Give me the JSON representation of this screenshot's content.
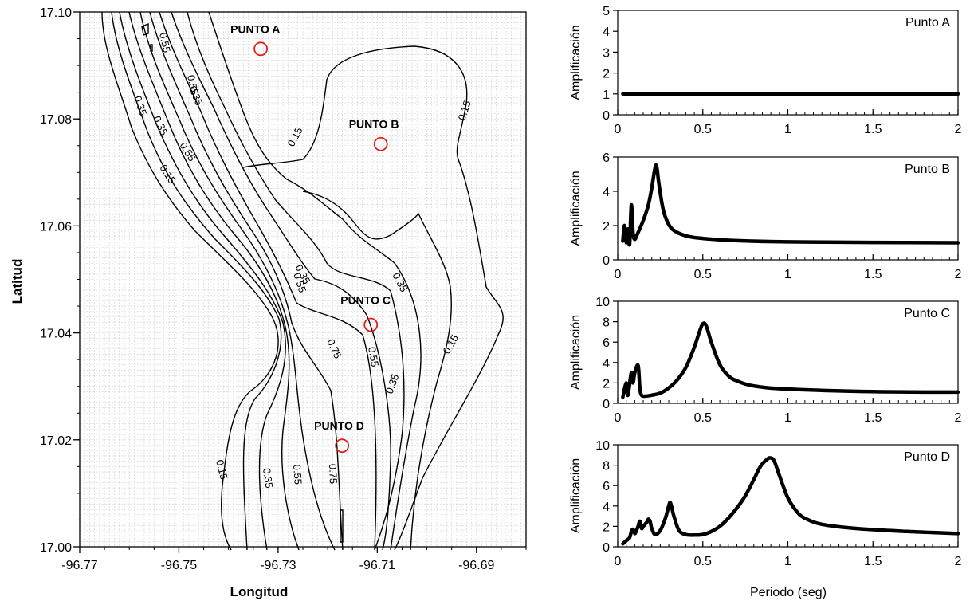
{
  "chart_data": [
    {
      "type": "contour",
      "xlabel": "Longitud",
      "ylabel": "Latitud",
      "xlim": [
        -96.77,
        -96.68
      ],
      "ylim": [
        17.0,
        17.1
      ],
      "xticks": [
        "-96.77",
        "-96.75",
        "-96.73",
        "-96.71",
        "-96.69"
      ],
      "yticks": [
        "17.00",
        "17.02",
        "17.04",
        "17.06",
        "17.08",
        "17.10"
      ],
      "grid": true,
      "points": [
        {
          "label": "PUNTO A",
          "lon": -96.7335,
          "lat": 17.0931
        },
        {
          "label": "PUNTO B",
          "lon": -96.7093,
          "lat": 17.0753
        },
        {
          "label": "PUNTO C",
          "lon": -96.7113,
          "lat": 17.0415
        },
        {
          "label": "PUNTO D",
          "lon": -96.7171,
          "lat": 17.0189
        }
      ],
      "contour_labels": [
        "0.15",
        "0.35",
        "0.55",
        "0.75"
      ]
    },
    {
      "type": "line",
      "title": "Punto A",
      "xlabel": "",
      "ylabel": "Amplificación",
      "xlim": [
        0,
        2
      ],
      "ylim": [
        0,
        5
      ],
      "xticks": [
        "0",
        "0.5",
        "1",
        "1.5",
        "2"
      ],
      "yticks": [
        "0",
        "1",
        "2",
        "3",
        "4",
        "5"
      ],
      "x": [
        0.03,
        0.5,
        1.0,
        1.5,
        2.0
      ],
      "y": [
        1.0,
        1.0,
        1.0,
        1.0,
        1.0
      ]
    },
    {
      "type": "line",
      "title": "Punto B",
      "xlabel": "",
      "ylabel": "Amplificación",
      "xlim": [
        0,
        2
      ],
      "ylim": [
        0,
        6
      ],
      "xticks": [
        "0",
        "0.5",
        "1",
        "1.5",
        "2"
      ],
      "yticks": [
        "0",
        "2",
        "4",
        "6"
      ],
      "x": [
        0.03,
        0.04,
        0.05,
        0.06,
        0.07,
        0.08,
        0.09,
        0.1,
        0.12,
        0.15,
        0.18,
        0.2,
        0.22,
        0.23,
        0.24,
        0.26,
        0.28,
        0.32,
        0.4,
        0.5,
        0.7,
        1.0,
        1.5,
        2.0
      ],
      "y": [
        1.1,
        2.0,
        1.0,
        1.8,
        0.9,
        3.2,
        1.6,
        1.2,
        1.6,
        2.3,
        3.2,
        4.2,
        5.4,
        5.4,
        4.6,
        3.3,
        2.5,
        1.8,
        1.4,
        1.25,
        1.12,
        1.05,
        1.02,
        1.0
      ]
    },
    {
      "type": "line",
      "title": "Punto C",
      "xlabel": "",
      "ylabel": "Amplificación",
      "xlim": [
        0,
        2
      ],
      "ylim": [
        0,
        10
      ],
      "xticks": [
        "0",
        "0.5",
        "1",
        "1.5",
        "2"
      ],
      "yticks": [
        "0",
        "2",
        "4",
        "6",
        "8",
        "10"
      ],
      "x": [
        0.03,
        0.05,
        0.06,
        0.08,
        0.09,
        0.1,
        0.12,
        0.13,
        0.14,
        0.16,
        0.2,
        0.25,
        0.3,
        0.35,
        0.4,
        0.45,
        0.48,
        0.5,
        0.52,
        0.55,
        0.6,
        0.65,
        0.7,
        0.8,
        1.0,
        1.5,
        2.0
      ],
      "y": [
        0.6,
        2.0,
        0.8,
        3.0,
        2.0,
        3.0,
        3.7,
        1.5,
        0.8,
        0.7,
        0.8,
        1.0,
        1.5,
        2.3,
        3.5,
        5.5,
        7.0,
        7.8,
        7.6,
        6.0,
        3.8,
        2.7,
        2.2,
        1.7,
        1.4,
        1.15,
        1.1
      ]
    },
    {
      "type": "line",
      "title": "Punto D",
      "xlabel": "Periodo (seg)",
      "ylabel": "Amplificación",
      "xlim": [
        0,
        2
      ],
      "ylim": [
        0,
        10
      ],
      "xticks": [
        "0",
        "0.5",
        "1",
        "1.5",
        "2"
      ],
      "yticks": [
        "0",
        "2",
        "4",
        "6",
        "8",
        "10"
      ],
      "x": [
        0.03,
        0.05,
        0.07,
        0.08,
        0.09,
        0.1,
        0.11,
        0.12,
        0.13,
        0.14,
        0.15,
        0.17,
        0.18,
        0.19,
        0.2,
        0.22,
        0.25,
        0.28,
        0.3,
        0.31,
        0.33,
        0.36,
        0.4,
        0.45,
        0.5,
        0.55,
        0.6,
        0.65,
        0.7,
        0.75,
        0.8,
        0.84,
        0.88,
        0.9,
        0.92,
        0.95,
        1.0,
        1.05,
        1.1,
        1.2,
        1.4,
        1.7,
        2.0
      ],
      "y": [
        0.3,
        0.6,
        0.9,
        1.5,
        1.7,
        1.3,
        1.6,
        2.0,
        2.5,
        1.8,
        2.0,
        2.4,
        2.7,
        2.5,
        1.8,
        1.2,
        1.6,
        2.8,
        4.0,
        4.3,
        3.0,
        1.6,
        1.2,
        1.15,
        1.2,
        1.5,
        2.0,
        2.8,
        3.8,
        5.0,
        6.6,
        7.9,
        8.6,
        8.7,
        8.4,
        7.0,
        4.8,
        3.5,
        2.8,
        2.2,
        1.8,
        1.5,
        1.3
      ]
    }
  ]
}
